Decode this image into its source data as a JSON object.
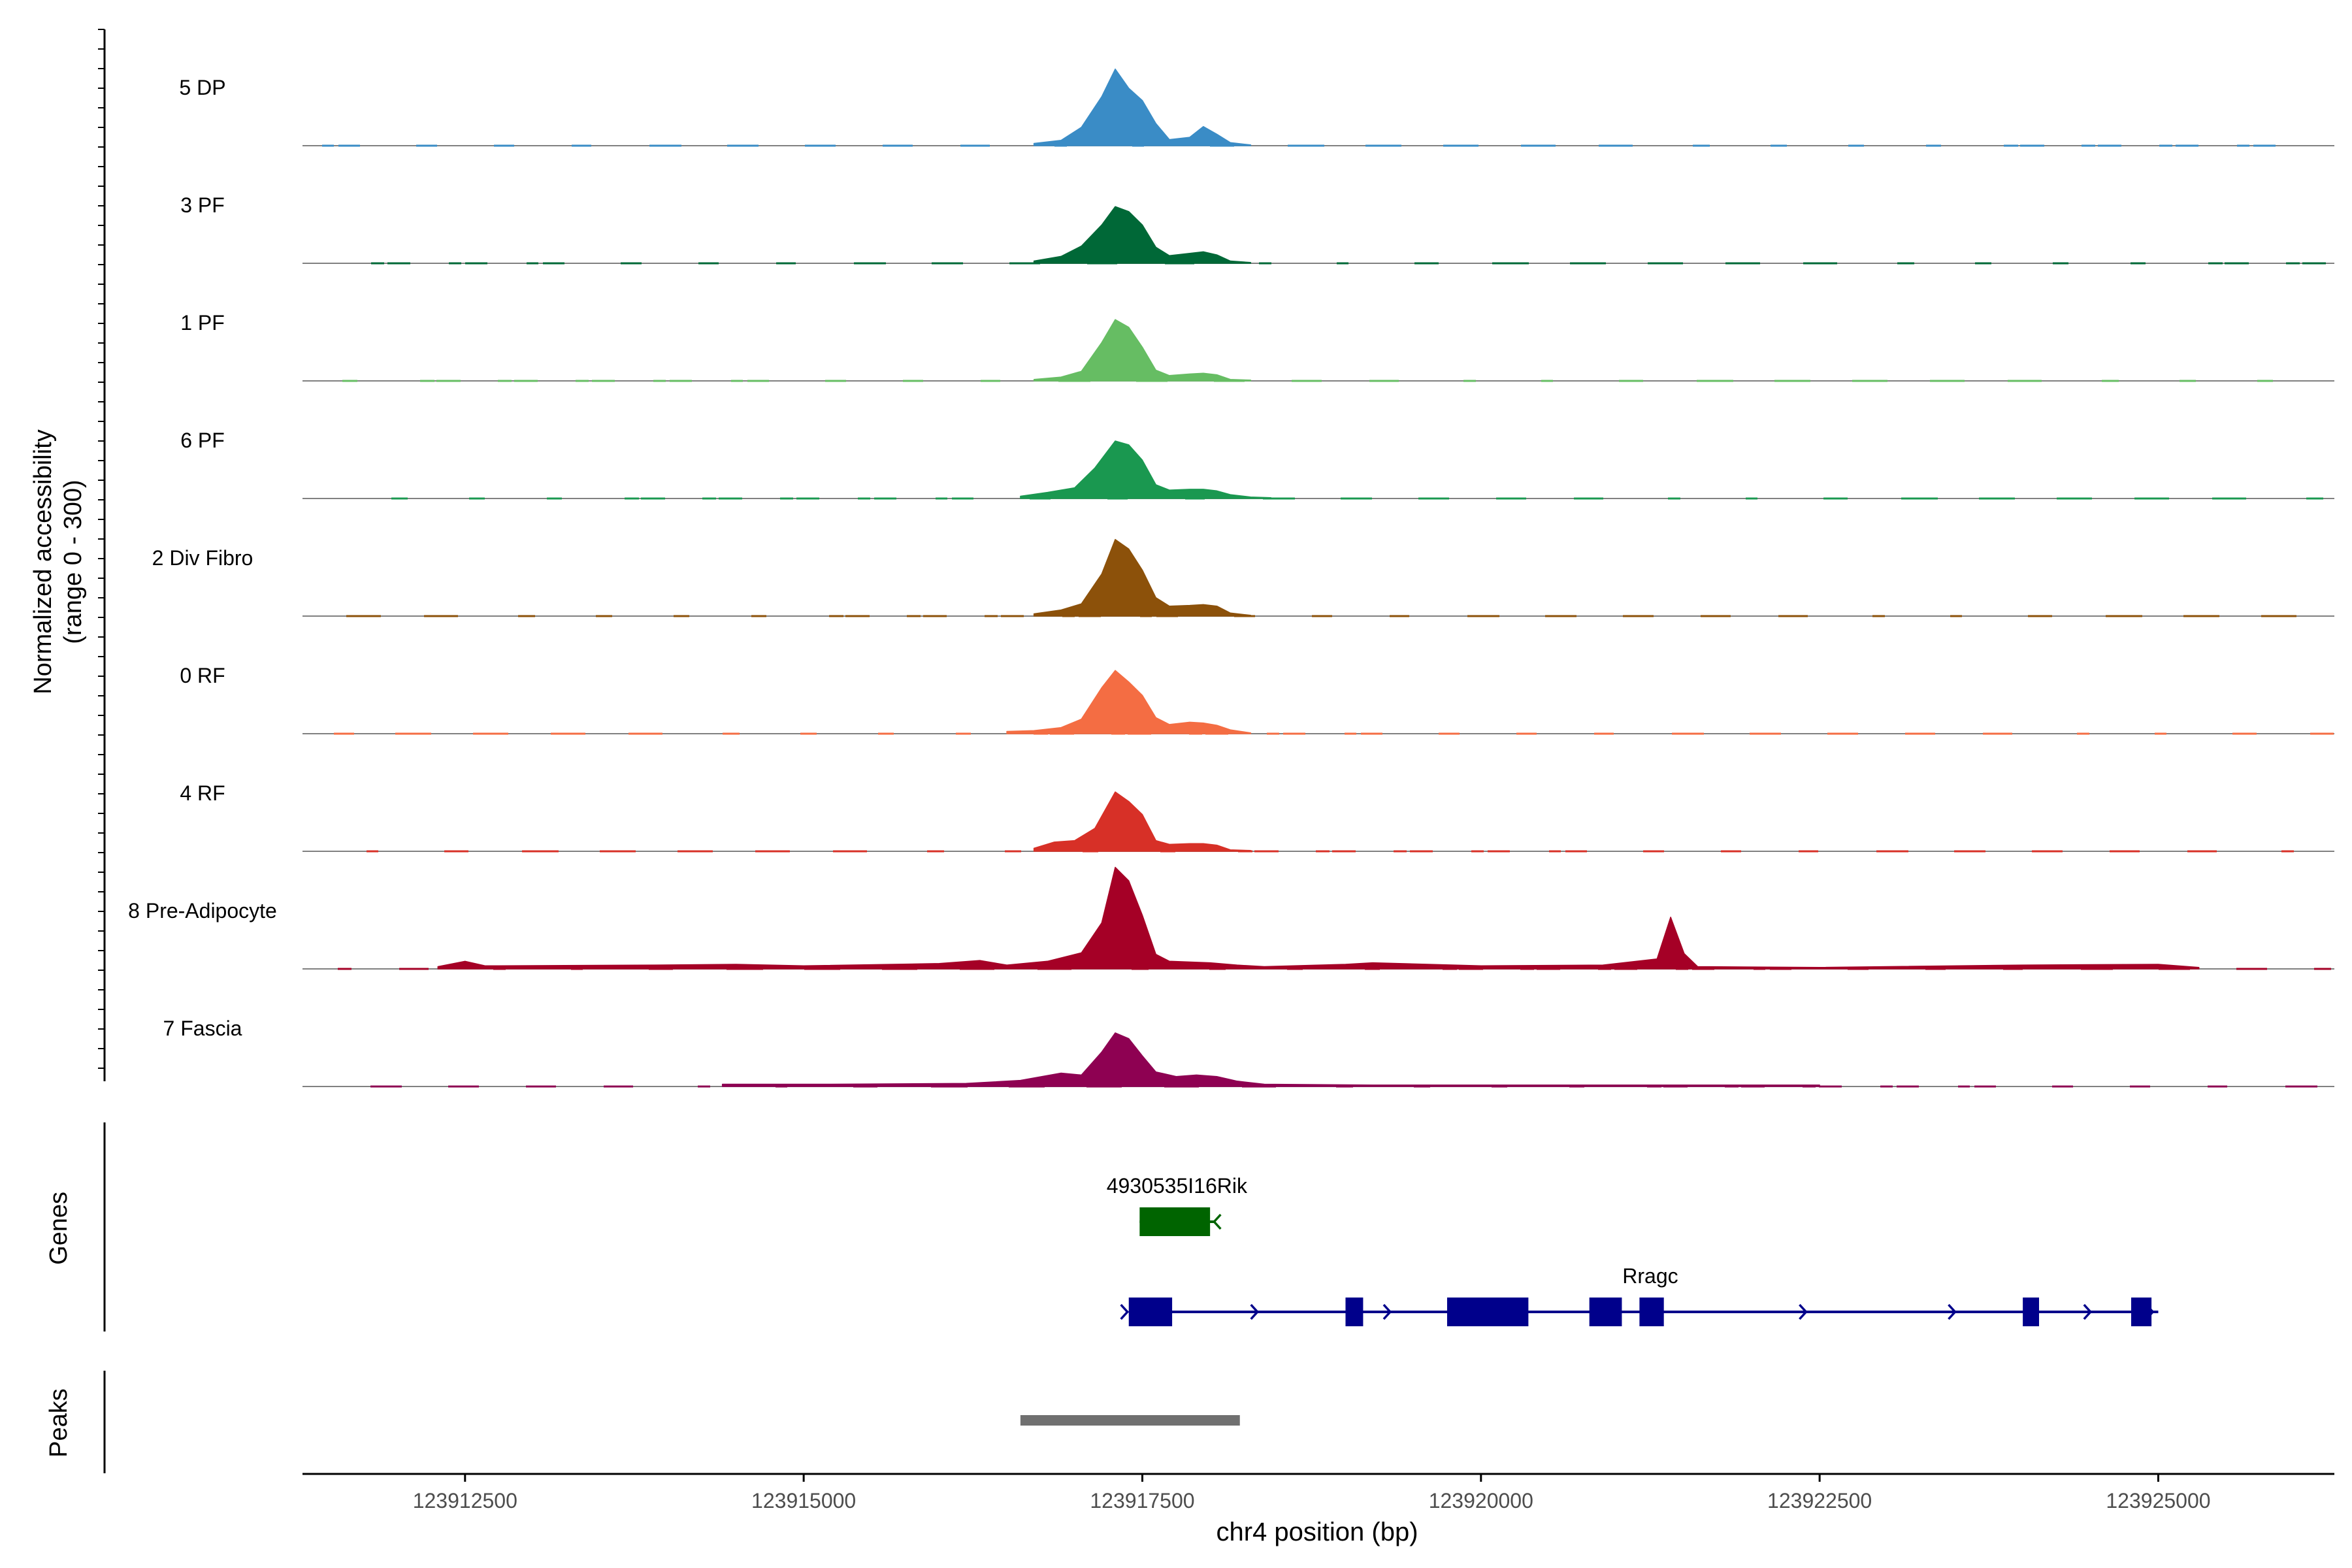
{
  "chart_data": {
    "type": "area",
    "title": "",
    "xlabel": "chr4 position (bp)",
    "ylabel_line1": "Normalized accessibility",
    "ylabel_line2": "(range 0 - 300)",
    "xlim": [
      123911300,
      123926300
    ],
    "ylim": [
      0,
      300
    ],
    "x_ticks": [
      123912500,
      123915000,
      123917500,
      123920000,
      123922500,
      123925000
    ],
    "x_tick_labels": [
      "123912500",
      "123915000",
      "123917500",
      "123920000",
      "123922500",
      "123925000"
    ],
    "grid": false,
    "legend": "none",
    "series": [
      {
        "name": "5 DP",
        "color": "#3a8cc6",
        "points": [
          [
            123916700,
            6
          ],
          [
            123916900,
            14
          ],
          [
            123917050,
            48
          ],
          [
            123917200,
            128
          ],
          [
            123917300,
            200
          ],
          [
            123917400,
            150
          ],
          [
            123917500,
            118
          ],
          [
            123917600,
            58
          ],
          [
            123917700,
            16
          ],
          [
            123917850,
            22
          ],
          [
            123917950,
            50
          ],
          [
            123918050,
            30
          ],
          [
            123918150,
            8
          ],
          [
            123918300,
            2
          ]
        ]
      },
      {
        "name": "3 PF",
        "color": "#006837",
        "points": [
          [
            123916700,
            6
          ],
          [
            123916900,
            18
          ],
          [
            123917050,
            45
          ],
          [
            123917200,
            100
          ],
          [
            123917300,
            148
          ],
          [
            123917400,
            135
          ],
          [
            123917500,
            100
          ],
          [
            123917600,
            42
          ],
          [
            123917700,
            20
          ],
          [
            123917850,
            26
          ],
          [
            123917950,
            30
          ],
          [
            123918050,
            22
          ],
          [
            123918150,
            6
          ],
          [
            123918300,
            2
          ]
        ]
      },
      {
        "name": "1 PF",
        "color": "#66bd63",
        "points": [
          [
            123916700,
            4
          ],
          [
            123916900,
            10
          ],
          [
            123917050,
            25
          ],
          [
            123917200,
            100
          ],
          [
            123917300,
            160
          ],
          [
            123917400,
            140
          ],
          [
            123917500,
            88
          ],
          [
            123917600,
            28
          ],
          [
            123917700,
            14
          ],
          [
            123917850,
            18
          ],
          [
            123917950,
            20
          ],
          [
            123918050,
            16
          ],
          [
            123918150,
            4
          ],
          [
            123918300,
            2
          ]
        ]
      },
      {
        "name": "6 PF",
        "color": "#1a9850",
        "points": [
          [
            123916600,
            6
          ],
          [
            123916800,
            16
          ],
          [
            123917000,
            28
          ],
          [
            123917150,
            80
          ],
          [
            123917300,
            150
          ],
          [
            123917400,
            140
          ],
          [
            123917500,
            100
          ],
          [
            123917600,
            36
          ],
          [
            123917700,
            22
          ],
          [
            123917850,
            24
          ],
          [
            123917950,
            24
          ],
          [
            123918050,
            20
          ],
          [
            123918150,
            10
          ],
          [
            123918300,
            4
          ],
          [
            123918450,
            2
          ]
        ]
      },
      {
        "name": "2 Div Fibro",
        "color": "#8c510a",
        "points": [
          [
            123916700,
            6
          ],
          [
            123916900,
            16
          ],
          [
            123917050,
            32
          ],
          [
            123917200,
            110
          ],
          [
            123917300,
            200
          ],
          [
            123917400,
            175
          ],
          [
            123917500,
            120
          ],
          [
            123917600,
            48
          ],
          [
            123917700,
            26
          ],
          [
            123917850,
            28
          ],
          [
            123917950,
            30
          ],
          [
            123918050,
            26
          ],
          [
            123918150,
            8
          ],
          [
            123918300,
            2
          ]
        ]
      },
      {
        "name": "0 RF",
        "color": "#f46d43",
        "points": [
          [
            123916500,
            6
          ],
          [
            123916700,
            8
          ],
          [
            123916900,
            16
          ],
          [
            123917050,
            38
          ],
          [
            123917200,
            120
          ],
          [
            123917300,
            165
          ],
          [
            123917400,
            135
          ],
          [
            123917500,
            100
          ],
          [
            123917600,
            42
          ],
          [
            123917700,
            24
          ],
          [
            123917850,
            30
          ],
          [
            123917950,
            28
          ],
          [
            123918050,
            22
          ],
          [
            123918150,
            10
          ],
          [
            123918300,
            2
          ]
        ]
      },
      {
        "name": "4 RF",
        "color": "#d73027",
        "points": [
          [
            123916700,
            8
          ],
          [
            123916850,
            24
          ],
          [
            123917000,
            28
          ],
          [
            123917150,
            60
          ],
          [
            123917300,
            155
          ],
          [
            123917400,
            130
          ],
          [
            123917500,
            96
          ],
          [
            123917600,
            28
          ],
          [
            123917700,
            18
          ],
          [
            123917850,
            20
          ],
          [
            123917950,
            20
          ],
          [
            123918050,
            16
          ],
          [
            123918150,
            4
          ],
          [
            123918300,
            2
          ]
        ]
      },
      {
        "name": "8 Pre-Adipocyte",
        "color": "#a50026",
        "points": [
          [
            123912300,
            6
          ],
          [
            123912500,
            20
          ],
          [
            123912650,
            8
          ],
          [
            123913900,
            10
          ],
          [
            123914500,
            12
          ],
          [
            123915000,
            8
          ],
          [
            123916000,
            14
          ],
          [
            123916300,
            22
          ],
          [
            123916500,
            10
          ],
          [
            123916800,
            20
          ],
          [
            123917050,
            42
          ],
          [
            123917200,
            120
          ],
          [
            123917300,
            265
          ],
          [
            123917400,
            230
          ],
          [
            123917500,
            140
          ],
          [
            123917600,
            38
          ],
          [
            123917700,
            20
          ],
          [
            123918000,
            16
          ],
          [
            123918200,
            10
          ],
          [
            123918400,
            6
          ],
          [
            123919000,
            12
          ],
          [
            123919200,
            16
          ],
          [
            123920000,
            8
          ],
          [
            123920900,
            10
          ],
          [
            123921300,
            26
          ],
          [
            123921400,
            135
          ],
          [
            123921500,
            40
          ],
          [
            123921600,
            6
          ],
          [
            123922500,
            4
          ],
          [
            123924000,
            10
          ],
          [
            123925000,
            12
          ],
          [
            123925300,
            4
          ]
        ]
      },
      {
        "name": "7 Fascia",
        "color": "#8e0152",
        "points": [
          [
            123914400,
            6
          ],
          [
            123915200,
            6
          ],
          [
            123916200,
            8
          ],
          [
            123916600,
            16
          ],
          [
            123916900,
            35
          ],
          [
            123917050,
            30
          ],
          [
            123917200,
            90
          ],
          [
            123917300,
            140
          ],
          [
            123917400,
            125
          ],
          [
            123917500,
            80
          ],
          [
            123917600,
            38
          ],
          [
            123917750,
            26
          ],
          [
            123917900,
            30
          ],
          [
            123918050,
            26
          ],
          [
            123918200,
            14
          ],
          [
            123918400,
            6
          ],
          [
            123919200,
            4
          ],
          [
            123920500,
            4
          ],
          [
            123922500,
            4
          ]
        ]
      }
    ],
    "genes": [
      {
        "name": "4930535I16Rik",
        "color": "#006400",
        "strand": "-",
        "start": 123917480,
        "end": 123918030,
        "exons": [
          [
            123917480,
            123918000
          ]
        ]
      },
      {
        "name": "Rragc",
        "color": "#00008b",
        "strand": "+",
        "start": 123917400,
        "end": 123925000,
        "exons": [
          [
            123917400,
            123917720
          ],
          [
            123919000,
            123919130
          ],
          [
            123919750,
            123920350
          ],
          [
            123920800,
            123921040
          ],
          [
            123921170,
            123921350
          ],
          [
            123924000,
            123924120
          ],
          [
            123924800,
            123924950
          ]
        ]
      }
    ],
    "peaks": [
      {
        "start": 123916600,
        "end": 123918220,
        "color": "#707070"
      }
    ],
    "track_titles": [
      "Genes",
      "Peaks"
    ]
  }
}
